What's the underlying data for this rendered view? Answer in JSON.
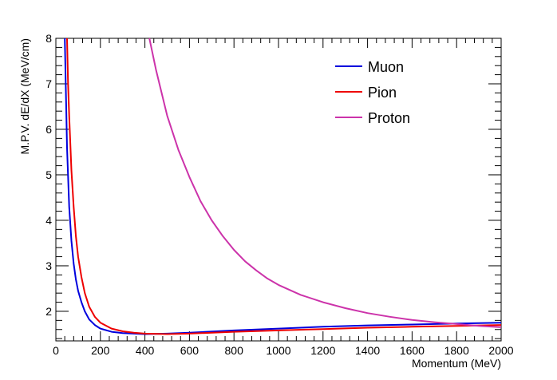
{
  "chart_data": {
    "type": "line",
    "xlabel": "Momentum (MeV)",
    "ylabel": "M.P.V. dE/dX (MeV/cm)",
    "xlim": [
      0,
      2000
    ],
    "ylim": [
      1.35,
      8
    ],
    "x_ticks": [
      0,
      200,
      400,
      600,
      800,
      1000,
      1200,
      1400,
      1600,
      1800,
      2000
    ],
    "y_ticks": [
      2,
      3,
      4,
      5,
      6,
      7,
      8
    ],
    "grid": false,
    "legend_position": "top-right",
    "series": [
      {
        "name": "Muon",
        "color": "#0000dd",
        "points": [
          [
            40,
            8.0
          ],
          [
            45,
            6.8
          ],
          [
            50,
            5.6
          ],
          [
            60,
            4.3
          ],
          [
            70,
            3.55
          ],
          [
            80,
            3.05
          ],
          [
            90,
            2.7
          ],
          [
            100,
            2.45
          ],
          [
            115,
            2.2
          ],
          [
            130,
            2.0
          ],
          [
            150,
            1.82
          ],
          [
            175,
            1.7
          ],
          [
            200,
            1.62
          ],
          [
            250,
            1.55
          ],
          [
            300,
            1.52
          ],
          [
            400,
            1.5
          ],
          [
            500,
            1.51
          ],
          [
            600,
            1.53
          ],
          [
            800,
            1.58
          ],
          [
            1000,
            1.62
          ],
          [
            1200,
            1.66
          ],
          [
            1400,
            1.69
          ],
          [
            1600,
            1.71
          ],
          [
            1800,
            1.73
          ],
          [
            2000,
            1.75
          ]
        ]
      },
      {
        "name": "Pion",
        "color": "#ee0000",
        "points": [
          [
            50,
            8.0
          ],
          [
            55,
            7.0
          ],
          [
            60,
            6.3
          ],
          [
            70,
            5.1
          ],
          [
            80,
            4.3
          ],
          [
            90,
            3.65
          ],
          [
            100,
            3.2
          ],
          [
            115,
            2.75
          ],
          [
            130,
            2.4
          ],
          [
            150,
            2.1
          ],
          [
            175,
            1.88
          ],
          [
            200,
            1.75
          ],
          [
            250,
            1.62
          ],
          [
            300,
            1.56
          ],
          [
            350,
            1.53
          ],
          [
            400,
            1.51
          ],
          [
            500,
            1.5
          ],
          [
            600,
            1.51
          ],
          [
            800,
            1.55
          ],
          [
            1000,
            1.58
          ],
          [
            1200,
            1.61
          ],
          [
            1400,
            1.64
          ],
          [
            1600,
            1.66
          ],
          [
            1800,
            1.68
          ],
          [
            2000,
            1.7
          ]
        ]
      },
      {
        "name": "Proton",
        "color": "#cc33aa",
        "points": [
          [
            420,
            8.0
          ],
          [
            450,
            7.3
          ],
          [
            500,
            6.3
          ],
          [
            550,
            5.55
          ],
          [
            600,
            4.95
          ],
          [
            650,
            4.42
          ],
          [
            700,
            4.0
          ],
          [
            750,
            3.65
          ],
          [
            800,
            3.35
          ],
          [
            850,
            3.1
          ],
          [
            900,
            2.9
          ],
          [
            950,
            2.72
          ],
          [
            1000,
            2.58
          ],
          [
            1100,
            2.36
          ],
          [
            1200,
            2.2
          ],
          [
            1300,
            2.07
          ],
          [
            1400,
            1.96
          ],
          [
            1500,
            1.88
          ],
          [
            1600,
            1.81
          ],
          [
            1700,
            1.76
          ],
          [
            1800,
            1.72
          ],
          [
            1900,
            1.68
          ],
          [
            2000,
            1.65
          ]
        ]
      }
    ]
  }
}
